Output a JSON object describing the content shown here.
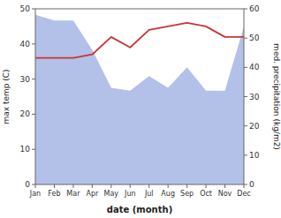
{
  "chart_data": {
    "type": "line",
    "categories": [
      "Jan",
      "Feb",
      "Mar",
      "Apr",
      "May",
      "Jun",
      "Jul",
      "Aug",
      "Sep",
      "Oct",
      "Nov",
      "Dec"
    ],
    "xlabel": "date (month)",
    "ylabel": "max temp (C)",
    "y2label": "med. precipitation (kg/m2)",
    "ylim": [
      0,
      50
    ],
    "yticks": [
      0,
      10,
      20,
      30,
      40,
      50
    ],
    "y2lim": [
      0,
      60
    ],
    "y2ticks": [
      0,
      10,
      20,
      30,
      40,
      50,
      60
    ],
    "grid": false,
    "series": [
      {
        "type": "area",
        "axis": "y2",
        "color": "#b3c0e8",
        "values": [
          58,
          56,
          56,
          46,
          33,
          32,
          37,
          33,
          40,
          32,
          32,
          54
        ]
      },
      {
        "type": "line",
        "color": "#cc3333",
        "values": [
          36,
          36,
          36,
          37,
          42,
          39,
          44,
          45,
          46,
          45,
          42,
          42
        ]
      }
    ]
  }
}
